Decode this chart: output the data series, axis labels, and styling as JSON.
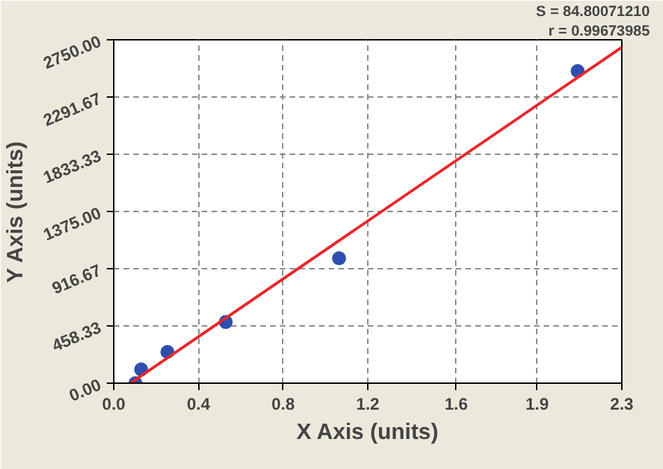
{
  "chart_data": {
    "type": "scatter",
    "xlabel": "X Axis (units)",
    "ylabel": "Y Axis (units)",
    "annotations": [
      "S = 84.80071210",
      "r = 0.99673985"
    ],
    "xlim": [
      0,
      2.3
    ],
    "ylim": [
      0,
      2750
    ],
    "xticks": [
      {
        "value": 0,
        "label": "0.0"
      },
      {
        "value": 0.3833,
        "label": "0.4"
      },
      {
        "value": 0.7667,
        "label": "0.8"
      },
      {
        "value": 1.15,
        "label": "1.2"
      },
      {
        "value": 1.55,
        "label": "1.6"
      },
      {
        "value": 1.9167,
        "label": "1.9"
      },
      {
        "value": 2.3,
        "label": "2.3"
      }
    ],
    "yticks": [
      {
        "value": 0,
        "label": "0.00"
      },
      {
        "value": 458.33,
        "label": "458.33"
      },
      {
        "value": 916.67,
        "label": "916.67"
      },
      {
        "value": 1375,
        "label": "1375.00"
      },
      {
        "value": 1833.33,
        "label": "1833.33"
      },
      {
        "value": 2291.67,
        "label": "2291.67"
      },
      {
        "value": 2750,
        "label": "2750.00"
      }
    ],
    "grid": true,
    "series": [
      {
        "color": "#2e4fae",
        "marker": "circle",
        "x": [
          0.098,
          0.124,
          0.243,
          0.507,
          1.02,
          2.1
        ],
        "values": [
          0,
          110,
          250,
          490,
          1000,
          2500
        ]
      },
      {
        "type": "line",
        "color": "#e8262a",
        "marker": "none",
        "line_style": "solid",
        "x": [
          0.076,
          2.3
        ],
        "values": [
          0,
          2690
        ]
      }
    ]
  }
}
